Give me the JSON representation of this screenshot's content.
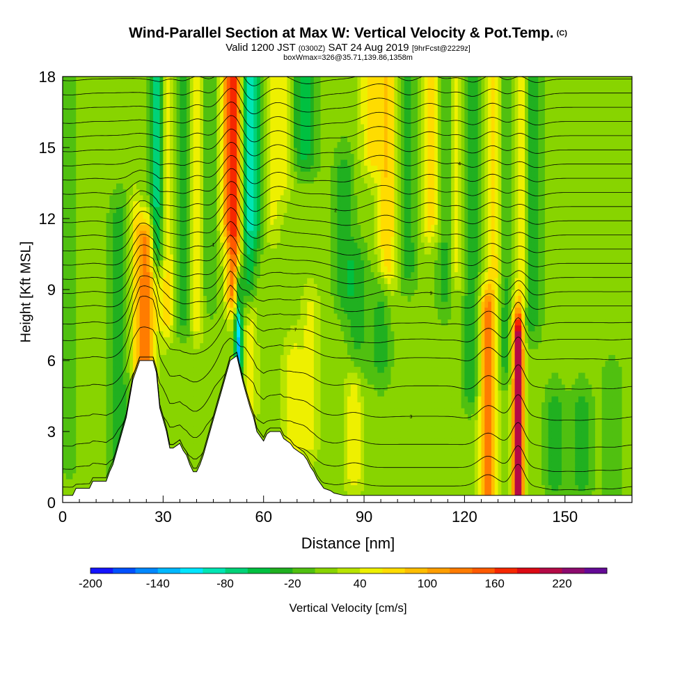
{
  "chart_data": {
    "type": "heatmap",
    "title": "Wind-Parallel Section at Max W: Vertical Velocity & Pot.Temp.",
    "title_mark": "(C)",
    "subtitle_main": "Valid 1200 JST",
    "subtitle_utc": "(0300Z)",
    "subtitle_date": "SAT 24 Aug 2019",
    "subtitle_fcst": "[9hrFcst@2229z]",
    "subtitle2": "boxWmax=326@35.71,139.86,1358m",
    "xlabel": "Distance [nm]",
    "ylabel": "Height [Kft MSL]",
    "xlim": [
      0,
      170
    ],
    "ylim": [
      0,
      18
    ],
    "x_ticks": [
      0,
      30,
      60,
      90,
      120,
      150
    ],
    "y_ticks": [
      0,
      3,
      6,
      9,
      12,
      15,
      18
    ],
    "colorbar": {
      "label": "Vertical Velocity [cm/s]",
      "tick_labels": [
        -200,
        -140,
        -80,
        -20,
        40,
        100,
        160,
        220
      ],
      "range": [
        -200,
        260
      ],
      "step": 20,
      "colors": [
        "#1414ff",
        "#0050ff",
        "#0088ff",
        "#00b8ff",
        "#00e6ff",
        "#00e6b4",
        "#00d278",
        "#00c040",
        "#20b020",
        "#50c010",
        "#88d400",
        "#b8e400",
        "#eef000",
        "#ffdc00",
        "#ffbe00",
        "#ff9e00",
        "#ff7c00",
        "#ff5a00",
        "#f62800",
        "#dc0a14",
        "#b40a46",
        "#8c0a6e",
        "#640a96"
      ]
    },
    "background_w": 10,
    "features": [
      {
        "x": 17,
        "w": -40,
        "z0": 1.0,
        "z1": 12.0,
        "width": 3
      },
      {
        "x": 22,
        "w": 50,
        "z0": 6.0,
        "z1": 12.0,
        "width": 2
      },
      {
        "x": 25,
        "w": 120,
        "z0": 6.0,
        "z1": 11.0,
        "width": 2.5
      },
      {
        "x": 27.5,
        "w": -120,
        "z0": 11.0,
        "z1": 18.0,
        "width": 3
      },
      {
        "x": 26,
        "w": 60,
        "z0": 11.0,
        "z1": 18.0,
        "width": 2
      },
      {
        "x": 31,
        "w": 60,
        "z0": 8.0,
        "z1": 18.0,
        "width": 2.5
      },
      {
        "x": 36,
        "w": -40,
        "z0": 8.0,
        "z1": 18.0,
        "width": 2.5
      },
      {
        "x": 40,
        "w": 50,
        "z0": 8.0,
        "z1": 18.0,
        "width": 2
      },
      {
        "x": 44,
        "w": -30,
        "z0": 9.0,
        "z1": 18.0,
        "width": 2.5
      },
      {
        "x": 49,
        "w": 60,
        "z0": 12.0,
        "z1": 18.0,
        "width": 2.5
      },
      {
        "x": 51.5,
        "w": 150,
        "z0": 9.0,
        "z1": 18.0,
        "width": 2.5
      },
      {
        "x": 52.5,
        "w": -140,
        "z0": 6.2,
        "z1": 9.0,
        "width": 1.2
      },
      {
        "x": 55,
        "w": -80,
        "z0": 9.0,
        "z1": 18.0,
        "width": 2.5
      },
      {
        "x": 56,
        "w": 50,
        "z0": 4.0,
        "z1": 8.0,
        "width": 2
      },
      {
        "x": 58,
        "w": -60,
        "z0": 12.0,
        "z1": 18.0,
        "width": 3
      },
      {
        "x": 62,
        "w": 40,
        "z0": 12.0,
        "z1": 18.0,
        "width": 3
      },
      {
        "x": 66,
        "w": 40,
        "z0": 14.0,
        "z1": 18.0,
        "width": 3
      },
      {
        "x": 69,
        "w": 40,
        "z0": 2.0,
        "z1": 6.0,
        "width": 3
      },
      {
        "x": 72,
        "w": -60,
        "z0": 15.0,
        "z1": 18.0,
        "width": 4
      },
      {
        "x": 74,
        "w": 40,
        "z0": 3.0,
        "z1": 8.0,
        "width": 2.5
      },
      {
        "x": 84,
        "w": -40,
        "z0": 9.0,
        "z1": 14.0,
        "width": 3
      },
      {
        "x": 88,
        "w": -40,
        "z0": 6.0,
        "z1": 10.0,
        "width": 3
      },
      {
        "x": 87,
        "w": 50,
        "z0": 1.5,
        "z1": 5.0,
        "width": 2.5
      },
      {
        "x": 92,
        "w": 60,
        "z0": 15.0,
        "z1": 18.0,
        "width": 3
      },
      {
        "x": 95,
        "w": -40,
        "z0": 6.0,
        "z1": 9.0,
        "width": 3
      },
      {
        "x": 97,
        "w": 70,
        "z0": 10.0,
        "z1": 18.0,
        "width": 3
      },
      {
        "x": 103,
        "w": -40,
        "z0": 10.0,
        "z1": 18.0,
        "width": 3
      },
      {
        "x": 110,
        "w": 60,
        "z0": 12.0,
        "z1": 18.0,
        "width": 3
      },
      {
        "x": 114,
        "w": -40,
        "z0": 9.0,
        "z1": 18.0,
        "width": 2.5
      },
      {
        "x": 118,
        "w": 40,
        "z0": 10.0,
        "z1": 18.0,
        "width": 2.5
      },
      {
        "x": 122,
        "w": -50,
        "z0": 5.0,
        "z1": 18.0,
        "width": 2.5
      },
      {
        "x": 127,
        "w": 120,
        "z0": 0.5,
        "z1": 8.0,
        "width": 2.5
      },
      {
        "x": 129,
        "w": 60,
        "z0": 10.0,
        "z1": 18.0,
        "width": 2.5
      },
      {
        "x": 132,
        "w": -40,
        "z0": 6.0,
        "z1": 18.0,
        "width": 2
      },
      {
        "x": 136,
        "w": 230,
        "z0": 0.5,
        "z1": 7.0,
        "width": 1.6
      },
      {
        "x": 137,
        "w": 60,
        "z0": 9.0,
        "z1": 18.0,
        "width": 2
      },
      {
        "x": 140,
        "w": -50,
        "z0": 8.0,
        "z1": 18.0,
        "width": 3
      },
      {
        "x": 147,
        "w": -40,
        "z0": 1.0,
        "z1": 4.0,
        "width": 3
      },
      {
        "x": 155,
        "w": -40,
        "z0": 1.0,
        "z1": 4.0,
        "width": 3
      },
      {
        "x": 164,
        "w": -30,
        "z0": 1.0,
        "z1": 5.0,
        "width": 3
      },
      {
        "x": 2,
        "w": -20,
        "z0": 2.0,
        "z1": 18.0,
        "width": 3
      }
    ],
    "terrain": [
      [
        0,
        0.3
      ],
      [
        3,
        0.3
      ],
      [
        4,
        0.6
      ],
      [
        8,
        0.6
      ],
      [
        9,
        0.9
      ],
      [
        13,
        0.9
      ],
      [
        14,
        1.3
      ],
      [
        15,
        1.6
      ],
      [
        16,
        2.1
      ],
      [
        17,
        2.6
      ],
      [
        18,
        3.1
      ],
      [
        19,
        3.6
      ],
      [
        20,
        4.4
      ],
      [
        21,
        5.2
      ],
      [
        22,
        5.6
      ],
      [
        23,
        6.0
      ],
      [
        27,
        6.0
      ],
      [
        28,
        5.5
      ],
      [
        29,
        4.0
      ],
      [
        30,
        3.5
      ],
      [
        31,
        3.0
      ],
      [
        32,
        2.3
      ],
      [
        33,
        2.3
      ],
      [
        35,
        2.5
      ],
      [
        36,
        2.2
      ],
      [
        37,
        2.0
      ],
      [
        38,
        1.6
      ],
      [
        39,
        1.3
      ],
      [
        40,
        1.3
      ],
      [
        41,
        1.6
      ],
      [
        42,
        2.0
      ],
      [
        43,
        2.5
      ],
      [
        44,
        3.0
      ],
      [
        45,
        3.5
      ],
      [
        46,
        4.0
      ],
      [
        47,
        4.5
      ],
      [
        48,
        5.0
      ],
      [
        49,
        5.5
      ],
      [
        50,
        6.0
      ],
      [
        52,
        6.2
      ],
      [
        53,
        5.6
      ],
      [
        54,
        5.0
      ],
      [
        55,
        4.5
      ],
      [
        56,
        4.0
      ],
      [
        57,
        3.6
      ],
      [
        58,
        3.0
      ],
      [
        59,
        2.8
      ],
      [
        60,
        2.6
      ],
      [
        61,
        2.9
      ],
      [
        62,
        3.0
      ],
      [
        65,
        3.0
      ],
      [
        66,
        2.7
      ],
      [
        68,
        2.5
      ],
      [
        69,
        2.3
      ],
      [
        71,
        2.1
      ],
      [
        72,
        2.0
      ],
      [
        73,
        1.8
      ],
      [
        74,
        1.5
      ],
      [
        75,
        1.3
      ],
      [
        76,
        1.0
      ],
      [
        77,
        0.8
      ],
      [
        78,
        0.6
      ],
      [
        80,
        0.5
      ],
      [
        81,
        0.4
      ],
      [
        84,
        0.3
      ],
      [
        170,
        0.3
      ]
    ],
    "isentropes": [
      {
        "z": 0.6,
        "label": ""
      },
      {
        "z": 1.4,
        "label": ""
      },
      {
        "z": 2.4,
        "label": ""
      },
      {
        "z": 3.6,
        "label": "3"
      },
      {
        "z": 4.9,
        "label": ""
      },
      {
        "z": 6.1,
        "label": ""
      },
      {
        "z": 6.9,
        "label": "7"
      },
      {
        "z": 7.6,
        "label": ""
      },
      {
        "z": 8.3,
        "label": ""
      },
      {
        "z": 8.9,
        "label": "9"
      },
      {
        "z": 9.5,
        "label": ""
      },
      {
        "z": 10.1,
        "label": ""
      },
      {
        "z": 10.7,
        "label": "1"
      },
      {
        "z": 11.3,
        "label": ""
      },
      {
        "z": 11.9,
        "label": ""
      },
      {
        "z": 12.5,
        "label": "2"
      },
      {
        "z": 13.1,
        "label": ""
      },
      {
        "z": 13.7,
        "label": ""
      },
      {
        "z": 14.3,
        "label": "4"
      },
      {
        "z": 14.9,
        "label": ""
      },
      {
        "z": 15.5,
        "label": ""
      },
      {
        "z": 16.1,
        "label": "6"
      },
      {
        "z": 16.7,
        "label": ""
      },
      {
        "z": 17.3,
        "label": ""
      },
      {
        "z": 17.9,
        "label": "8"
      }
    ]
  }
}
